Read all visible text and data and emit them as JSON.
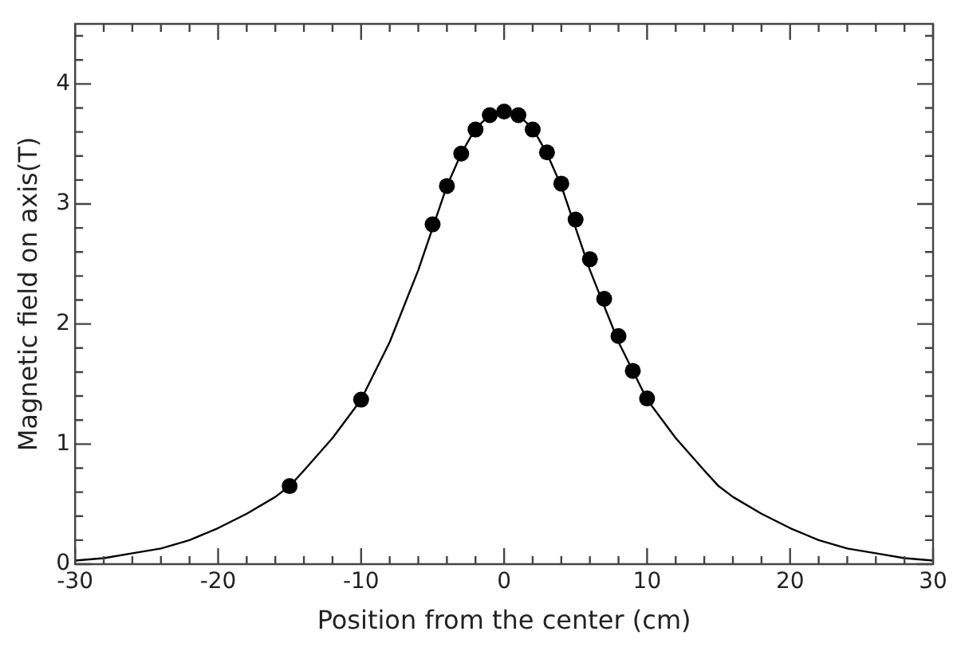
{
  "chart_data": {
    "type": "scatter",
    "xlabel": "Position from the center (cm)",
    "ylabel": "Magnetic field on axis(T)",
    "xlim": [
      -30,
      30
    ],
    "ylim": [
      0,
      4.5
    ],
    "xticks": [
      -30,
      {
        "value": -28,
        "label": null
      },
      {
        "value": -26,
        "label": null
      },
      {
        "value": -24,
        "label": null
      },
      {
        "value": -22,
        "label": null
      },
      -20,
      {
        "value": -18,
        "label": null
      },
      {
        "value": -16,
        "label": null
      },
      {
        "value": -14,
        "label": null
      },
      {
        "value": -12,
        "label": null
      },
      -10,
      {
        "value": -8,
        "label": null
      },
      {
        "value": -6,
        "label": null
      },
      {
        "value": -4,
        "label": null
      },
      {
        "value": -2,
        "label": null
      },
      0,
      {
        "value": 2,
        "label": null
      },
      {
        "value": 4,
        "label": null
      },
      {
        "value": 6,
        "label": null
      },
      {
        "value": 8,
        "label": null
      },
      10,
      {
        "value": 12,
        "label": null
      },
      {
        "value": 14,
        "label": null
      },
      {
        "value": 16,
        "label": null
      },
      {
        "value": 18,
        "label": null
      },
      20,
      {
        "value": 22,
        "label": null
      },
      {
        "value": 24,
        "label": null
      },
      {
        "value": 26,
        "label": null
      },
      {
        "value": 28,
        "label": null
      },
      30
    ],
    "yticks": [
      0,
      {
        "value": 0.2,
        "label": null
      },
      {
        "value": 0.4,
        "label": null
      },
      {
        "value": 0.6,
        "label": null
      },
      {
        "value": 0.8,
        "label": null
      },
      1,
      {
        "value": 1.2,
        "label": null
      },
      {
        "value": 1.4,
        "label": null
      },
      {
        "value": 1.6,
        "label": null
      },
      {
        "value": 1.8,
        "label": null
      },
      2,
      {
        "value": 2.2,
        "label": null
      },
      {
        "value": 2.4,
        "label": null
      },
      {
        "value": 2.6,
        "label": null
      },
      {
        "value": 2.8,
        "label": null
      },
      3,
      {
        "value": 3.2,
        "label": null
      },
      {
        "value": 3.4,
        "label": null
      },
      {
        "value": 3.6,
        "label": null
      },
      {
        "value": 3.8,
        "label": null
      },
      4,
      {
        "value": 4.2,
        "label": null
      },
      {
        "value": 4.4,
        "label": null
      }
    ],
    "grid": false,
    "legend": false,
    "series": [
      {
        "type": "line",
        "color": "#000000",
        "marker": "none",
        "line_style": "solid",
        "x": [
          -30,
          -28,
          -26,
          -24,
          -22,
          -20,
          -18,
          -16,
          -15,
          -14,
          -12,
          -10,
          -8,
          -6,
          -5,
          -4,
          -3,
          -2,
          -1,
          0,
          1,
          2,
          3,
          4,
          5,
          6,
          8,
          10,
          12,
          14,
          15,
          16,
          18,
          20,
          22,
          24,
          26,
          28,
          30
        ],
        "values": [
          0.03,
          0.05,
          0.09,
          0.13,
          0.2,
          0.3,
          0.42,
          0.56,
          0.65,
          0.78,
          1.05,
          1.37,
          1.85,
          2.45,
          2.8,
          3.15,
          3.42,
          3.63,
          3.74,
          3.77,
          3.74,
          3.63,
          3.42,
          3.15,
          2.8,
          2.45,
          1.85,
          1.37,
          1.05,
          0.78,
          0.65,
          0.56,
          0.42,
          0.3,
          0.2,
          0.13,
          0.09,
          0.05,
          0.03
        ]
      },
      {
        "type": "scatter",
        "color": "#000000",
        "marker": "circle",
        "x": [
          -15,
          -10,
          -5,
          -4,
          -3,
          -2,
          -1,
          0,
          1,
          2,
          3,
          4,
          5,
          6,
          7,
          8,
          9,
          10
        ],
        "values": [
          0.65,
          1.37,
          2.83,
          3.15,
          3.42,
          3.62,
          3.74,
          3.77,
          3.74,
          3.62,
          3.43,
          3.17,
          2.87,
          2.54,
          2.21,
          1.9,
          1.61,
          1.38
        ]
      }
    ]
  }
}
